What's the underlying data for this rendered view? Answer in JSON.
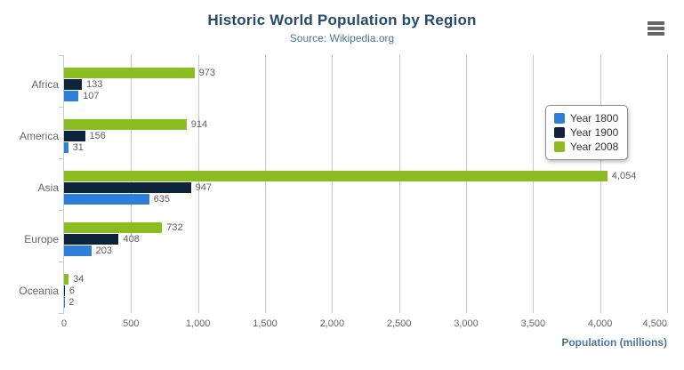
{
  "header": {
    "menu_icon": "hamburger-icon"
  },
  "chart_data": {
    "type": "bar",
    "orientation": "horizontal",
    "title": "Historic World Population by Region",
    "subtitle": "Source: Wikipedia.org",
    "categories": [
      "Africa",
      "America",
      "Asia",
      "Europe",
      "Oceania"
    ],
    "series": [
      {
        "name": "Year 1800",
        "color": "#2f7ed8",
        "values": [
          107,
          31,
          635,
          203,
          2
        ],
        "labels": [
          "107",
          "31",
          "635",
          "203",
          "2"
        ]
      },
      {
        "name": "Year 1900",
        "color": "#0d233a",
        "values": [
          133,
          156,
          947,
          408,
          6
        ],
        "labels": [
          "133",
          "156",
          "947",
          "408",
          "6"
        ]
      },
      {
        "name": "Year 2008",
        "color": "#8bbc21",
        "values": [
          973,
          914,
          4054,
          732,
          34
        ],
        "labels": [
          "973",
          "914",
          "4,054",
          "732",
          "34"
        ]
      }
    ],
    "bar_order_top_to_bottom": [
      "Year 2008",
      "Year 1900",
      "Year 1800"
    ],
    "xlabel": "Population (millions)",
    "ylabel": "",
    "xlim": [
      0,
      4500
    ],
    "x_ticks": [
      {
        "value": 0,
        "label": "0"
      },
      {
        "value": 500,
        "label": "500"
      },
      {
        "value": 1000,
        "label": "1,000"
      },
      {
        "value": 1500,
        "label": "1,500"
      },
      {
        "value": 2000,
        "label": "2,000"
      },
      {
        "value": 2500,
        "label": "2,500"
      },
      {
        "value": 3000,
        "label": "3,000"
      },
      {
        "value": 3500,
        "label": "3,500"
      },
      {
        "value": 4000,
        "label": "4,000"
      },
      {
        "value": 4500,
        "label": "4,500"
      }
    ],
    "grid": true,
    "legend": {
      "position": "right",
      "items": [
        "Year 1800",
        "Year 1900",
        "Year 2008"
      ]
    },
    "colors": {
      "title": "#274b6d",
      "subtitle": "#4d759e",
      "axis_labels": "#666666",
      "data_labels": "#606060",
      "gridline": "#c9c9c9",
      "category_axis_line": "#c0d0e0",
      "axis_title": "#4d759e"
    }
  }
}
